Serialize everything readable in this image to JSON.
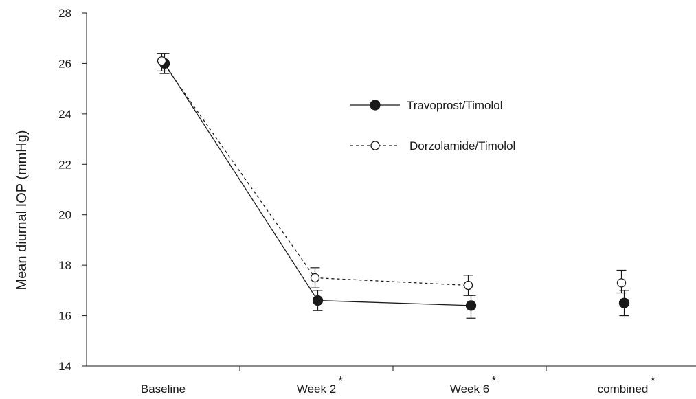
{
  "chart_data": {
    "type": "line",
    "categories": [
      "Baseline",
      "Week 2",
      "Week 6",
      "combined"
    ],
    "category_markers": [
      "",
      "*",
      "*",
      "*"
    ],
    "ylabel": "Mean diurnal IOP (mmHg)",
    "xlabel": "",
    "ylim": [
      14,
      28
    ],
    "yticks": [
      14,
      16,
      18,
      20,
      22,
      24,
      26,
      28
    ],
    "series": [
      {
        "name": "Travoprost/Timolol",
        "style": "solid",
        "marker": "filled-circle",
        "color": "#1a1a1a",
        "values": [
          26.0,
          16.6,
          16.4,
          16.5
        ],
        "error_low": [
          25.6,
          16.2,
          15.9,
          16.0
        ],
        "error_high": [
          26.4,
          17.0,
          16.8,
          17.0
        ],
        "connected": [
          true,
          true,
          true,
          false
        ]
      },
      {
        "name": "Dorzolamide/Timolol",
        "style": "dotted",
        "marker": "open-circle",
        "color": "#1a1a1a",
        "values": [
          26.1,
          17.5,
          17.2,
          17.3
        ],
        "error_low": [
          25.7,
          17.1,
          16.8,
          16.9
        ],
        "error_high": [
          26.4,
          17.9,
          17.6,
          17.8
        ],
        "connected": [
          true,
          true,
          true,
          false
        ]
      }
    ],
    "legend_position": "upper-center-right",
    "grid": false
  }
}
